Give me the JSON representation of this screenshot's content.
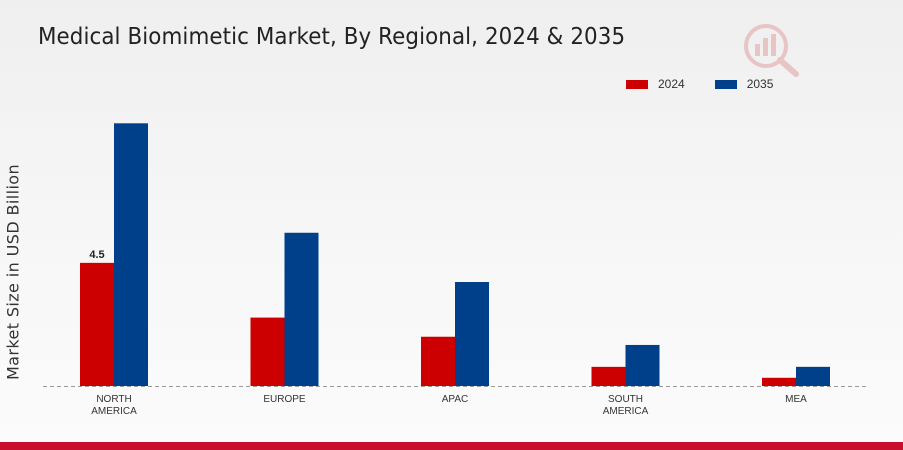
{
  "chart_data": {
    "type": "bar",
    "title": "Medical Biomimetic Market, By Regional, 2024 & 2035",
    "ylabel": "Market Size in USD Billion",
    "xlabel": "",
    "categories": [
      "NORTH AMERICA",
      "EUROPE",
      "APAC",
      "SOUTH AMERICA",
      "MEA"
    ],
    "category_lines": [
      [
        "NORTH",
        "AMERICA"
      ],
      [
        "EUROPE"
      ],
      [
        "APAC"
      ],
      [
        "SOUTH",
        "AMERICA"
      ],
      [
        "MEA"
      ]
    ],
    "series": [
      {
        "name": "2024",
        "color": "#cc0000",
        "values": [
          4.5,
          2.5,
          1.8,
          0.7,
          0.3
        ]
      },
      {
        "name": "2035",
        "color": "#003f8a",
        "values": [
          9.6,
          5.6,
          3.8,
          1.5,
          0.7
        ]
      }
    ],
    "data_labels": [
      {
        "series": 0,
        "index": 0,
        "text": "4.5"
      }
    ],
    "ylim": [
      0,
      11
    ],
    "grid": false,
    "legend_position": "top-right",
    "baseline_style": "dashed"
  }
}
